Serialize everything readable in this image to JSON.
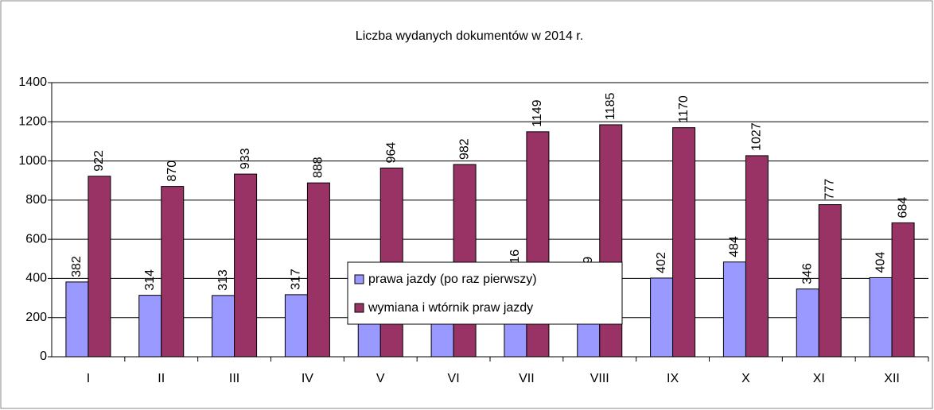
{
  "chart_data": {
    "type": "bar",
    "title": "Liczba wydanych dokumentów w 2014 r.",
    "categories": [
      "I",
      "II",
      "III",
      "IV",
      "V",
      "VI",
      "VII",
      "VIII",
      "IX",
      "X",
      "XI",
      "XII"
    ],
    "series": [
      {
        "name": "prawa jazdy (po raz pierwszy)",
        "color": "#9999ff",
        "values": [
          382,
          314,
          313,
          317,
          334,
          323,
          416,
          379,
          402,
          484,
          346,
          404
        ]
      },
      {
        "name": "wymiana i wtórnik praw jazdy",
        "color": "#993366",
        "values": [
          922,
          870,
          933,
          888,
          964,
          982,
          1149,
          1185,
          1170,
          1027,
          777,
          684
        ]
      }
    ],
    "ylim": [
      0,
      1400
    ],
    "yticks": [
      0,
      200,
      400,
      600,
      800,
      1000,
      1200,
      1400
    ],
    "grid": true
  }
}
